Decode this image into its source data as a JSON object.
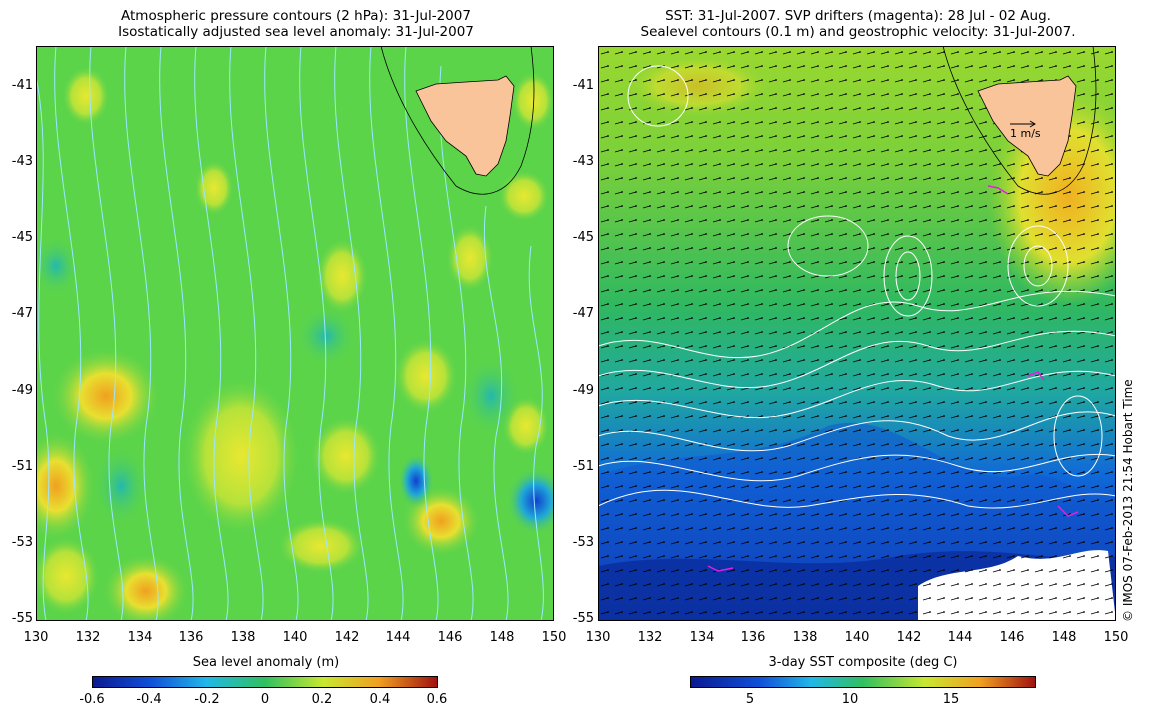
{
  "left_panel": {
    "title_line1": "Atmospheric pressure contours (2 hPa): 31-Jul-2007",
    "title_line2": "Isostatically adjusted sea level anomaly: 31-Jul-2007",
    "colorbar_label": "Sea level anomaly (m)",
    "colorbar_ticks": [
      "-0.6",
      "-0.4",
      "-0.2",
      "0",
      "0.2",
      "0.4",
      "0.6"
    ]
  },
  "right_panel": {
    "title_line1": "SST: 31-Jul-2007. SVP drifters (magenta): 28 Jul - 02 Aug.",
    "title_line2": "Sealevel contours (0.1 m) and geostrophic velocity: 31-Jul-2007.",
    "colorbar_label": "3-day SST composite (deg C)",
    "colorbar_ticks": [
      "5",
      "10",
      "15"
    ],
    "vector_scale_label": "1 m/s"
  },
  "axes": {
    "lat_ticks": [
      "-41",
      "-43",
      "-45",
      "-47",
      "-49",
      "-51",
      "-53",
      "-55"
    ],
    "lon_ticks": [
      "130",
      "132",
      "134",
      "136",
      "138",
      "140",
      "142",
      "144",
      "146",
      "148",
      "150"
    ]
  },
  "credit": "© IMOS 07-Feb-2013 21:54 Hobart Time",
  "colors": {
    "land": "#f9c49a",
    "sla_background": "#5bd44a",
    "sst_cold": "#1060d8",
    "sst_warm": "#f0c020"
  }
}
